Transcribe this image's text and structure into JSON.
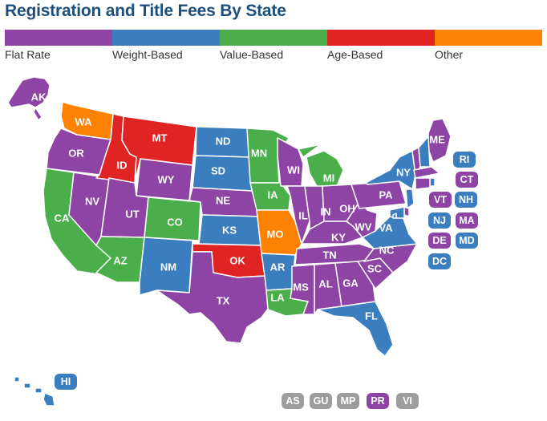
{
  "title": "Registration and Title Fees By State",
  "legend": [
    {
      "label": "Flat Rate",
      "color": "#8e44a5"
    },
    {
      "label": "Weight-Based",
      "color": "#3a7ebf"
    },
    {
      "label": "Value-Based",
      "color": "#4aae4a"
    },
    {
      "label": "Age-Based",
      "color": "#e02424"
    },
    {
      "label": "Other",
      "color": "#fd8202"
    }
  ],
  "territory_color": "#9d9d9d",
  "states": {
    "AK": {
      "label": "AK",
      "category": "Flat Rate"
    },
    "WA": {
      "label": "WA",
      "category": "Other"
    },
    "OR": {
      "label": "OR",
      "category": "Flat Rate"
    },
    "CA": {
      "label": "CA",
      "category": "Value-Based"
    },
    "NV": {
      "label": "NV",
      "category": "Flat Rate"
    },
    "ID": {
      "label": "ID",
      "category": "Age-Based"
    },
    "MT": {
      "label": "MT",
      "category": "Age-Based"
    },
    "WY": {
      "label": "WY",
      "category": "Flat Rate"
    },
    "UT": {
      "label": "UT",
      "category": "Flat Rate"
    },
    "AZ": {
      "label": "AZ",
      "category": "Value-Based"
    },
    "CO": {
      "label": "CO",
      "category": "Value-Based"
    },
    "NM": {
      "label": "NM",
      "category": "Weight-Based"
    },
    "ND": {
      "label": "ND",
      "category": "Weight-Based"
    },
    "SD": {
      "label": "SD",
      "category": "Weight-Based"
    },
    "NE": {
      "label": "NE",
      "category": "Flat Rate"
    },
    "KS": {
      "label": "KS",
      "category": "Weight-Based"
    },
    "OK": {
      "label": "OK",
      "category": "Age-Based"
    },
    "TX": {
      "label": "TX",
      "category": "Flat Rate"
    },
    "MN": {
      "label": "MN",
      "category": "Value-Based"
    },
    "IA": {
      "label": "IA",
      "category": "Value-Based"
    },
    "MO": {
      "label": "MO",
      "category": "Other"
    },
    "AR": {
      "label": "AR",
      "category": "Weight-Based"
    },
    "LA": {
      "label": "LA",
      "category": "Value-Based"
    },
    "WI": {
      "label": "WI",
      "category": "Flat Rate"
    },
    "IL": {
      "label": "IL",
      "category": "Flat Rate"
    },
    "MI": {
      "label": "MI",
      "category": "Value-Based"
    },
    "IN": {
      "label": "IN",
      "category": "Flat Rate"
    },
    "OH": {
      "label": "OH",
      "category": "Flat Rate"
    },
    "KY": {
      "label": "KY",
      "category": "Flat Rate"
    },
    "TN": {
      "label": "TN",
      "category": "Flat Rate"
    },
    "MS": {
      "label": "MS",
      "category": "Flat Rate"
    },
    "AL": {
      "label": "AL",
      "category": "Flat Rate"
    },
    "GA": {
      "label": "GA",
      "category": "Flat Rate"
    },
    "FL": {
      "label": "FL",
      "category": "Weight-Based"
    },
    "SC": {
      "label": "SC",
      "category": "Flat Rate"
    },
    "NC": {
      "label": "NC",
      "category": "Flat Rate"
    },
    "VA": {
      "label": "VA",
      "category": "Weight-Based"
    },
    "WV": {
      "label": "WV",
      "category": "Flat Rate"
    },
    "PA": {
      "label": "PA",
      "category": "Flat Rate"
    },
    "NY": {
      "label": "NY",
      "category": "Weight-Based"
    },
    "ME": {
      "label": "ME",
      "category": "Flat Rate"
    },
    "VT": {
      "label": "VT",
      "category": "Flat Rate"
    },
    "NH": {
      "label": "NH",
      "category": "Weight-Based"
    },
    "MA": {
      "label": "MA",
      "category": "Flat Rate"
    },
    "RI": {
      "label": "RI",
      "category": "Weight-Based"
    },
    "CT": {
      "label": "CT",
      "category": "Flat Rate"
    },
    "NJ": {
      "label": "NJ",
      "category": "Weight-Based"
    },
    "DE": {
      "label": "DE",
      "category": "Flat Rate"
    },
    "MD": {
      "label": "MD",
      "category": "Weight-Based"
    },
    "DC": {
      "label": "DC",
      "category": "Weight-Based"
    },
    "HI": {
      "label": "HI",
      "category": "Weight-Based"
    }
  },
  "territories": [
    "AS",
    "GU",
    "MP",
    "PR",
    "VI"
  ],
  "territory_categories": {
    "PR": "Flat Rate"
  }
}
